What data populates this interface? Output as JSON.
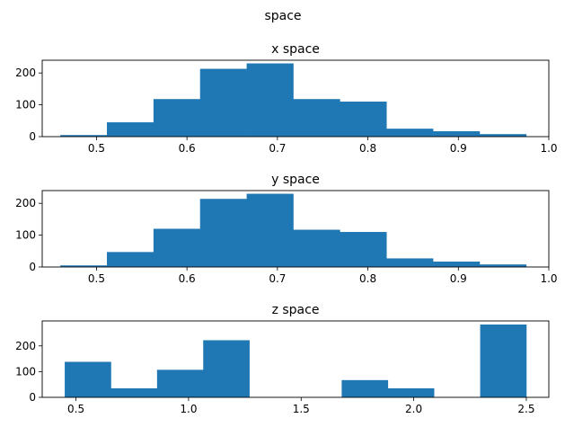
{
  "figure": {
    "suptitle": "space"
  },
  "chart_data": [
    {
      "type": "histogram",
      "title": "x space",
      "xlim": [
        0.44,
        1.0
      ],
      "ylim": [
        0,
        240
      ],
      "xticks": [
        0.5,
        0.6,
        0.7,
        0.8,
        0.9,
        1.0
      ],
      "xtick_labels": [
        "0.5",
        "0.6",
        "0.7",
        "0.8",
        "0.9",
        "1.0"
      ],
      "yticks": [
        0,
        100,
        200
      ],
      "ytick_labels": [
        "0",
        "100",
        "200"
      ],
      "bin_edges": [
        0.46,
        0.5115,
        0.563,
        0.6145,
        0.666,
        0.7175,
        0.769,
        0.8205,
        0.872,
        0.9235,
        0.975
      ],
      "counts": [
        5,
        45,
        118,
        213,
        230,
        118,
        110,
        25,
        17,
        8
      ],
      "color": "#1f77b4"
    },
    {
      "type": "histogram",
      "title": "y space",
      "xlim": [
        0.44,
        1.0
      ],
      "ylim": [
        0,
        240
      ],
      "xticks": [
        0.5,
        0.6,
        0.7,
        0.8,
        0.9,
        1.0
      ],
      "xtick_labels": [
        "0.5",
        "0.6",
        "0.7",
        "0.8",
        "0.9",
        "1.0"
      ],
      "yticks": [
        0,
        100,
        200
      ],
      "ytick_labels": [
        "0",
        "100",
        "200"
      ],
      "bin_edges": [
        0.46,
        0.5115,
        0.563,
        0.6145,
        0.666,
        0.7175,
        0.769,
        0.8205,
        0.872,
        0.9235,
        0.975
      ],
      "counts": [
        5,
        47,
        120,
        214,
        230,
        117,
        110,
        27,
        17,
        8
      ],
      "color": "#1f77b4"
    },
    {
      "type": "histogram",
      "title": "z space",
      "xlim": [
        0.35,
        2.6
      ],
      "ylim": [
        0,
        297
      ],
      "xticks": [
        0.5,
        1.0,
        1.5,
        2.0,
        2.5
      ],
      "xtick_labels": [
        "0.5",
        "1.0",
        "1.5",
        "2.0",
        "2.5"
      ],
      "yticks": [
        0,
        100,
        200
      ],
      "ytick_labels": [
        "0",
        "100",
        "200"
      ],
      "bin_edges": [
        0.45,
        0.655,
        0.86,
        1.065,
        1.27,
        1.475,
        1.68,
        1.885,
        2.09,
        2.295,
        2.5
      ],
      "counts": [
        138,
        35,
        107,
        222,
        0,
        0,
        67,
        35,
        0,
        283
      ],
      "color": "#1f77b4"
    }
  ]
}
